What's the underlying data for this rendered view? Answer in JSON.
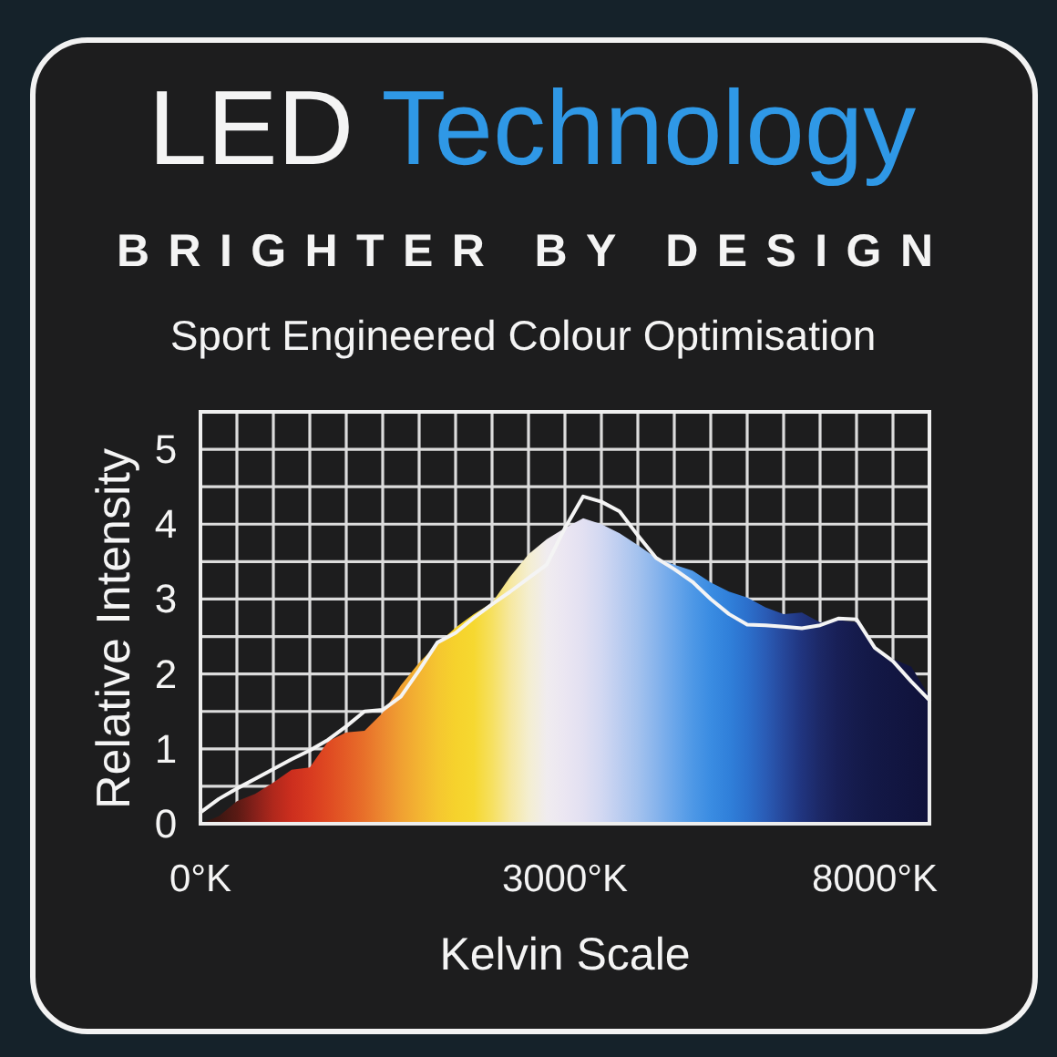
{
  "chart_data": {
    "type": "area",
    "title": "LED Technology",
    "subtitle": "BRIGHTER BY DESIGN",
    "annotations": [
      "Sport Engineered Colour Optimisation"
    ],
    "xlabel": "Kelvin Scale",
    "ylabel": "Relative Intensity",
    "categories": [
      "0°K",
      null,
      null,
      null,
      null,
      null,
      null,
      null,
      null,
      null,
      null,
      null,
      null,
      null,
      null,
      null,
      null,
      null,
      null,
      null,
      "3000°K",
      null,
      null,
      null,
      null,
      null,
      null,
      null,
      null,
      null,
      null,
      null,
      null,
      null,
      null,
      null,
      null,
      "8000°K",
      null,
      null,
      null
    ],
    "ylim": [
      0,
      5.5
    ],
    "yticks": [
      0,
      {
        "value": 0.5,
        "label": null
      },
      1,
      {
        "value": 1.5,
        "label": null
      },
      2,
      {
        "value": 2.5,
        "label": null
      },
      3,
      {
        "value": 3.5,
        "label": null
      },
      4,
      {
        "value": 4.5,
        "label": null
      },
      5,
      {
        "value": 5.5,
        "label": null
      }
    ],
    "grid": true,
    "series": [
      {
        "colors": [
          "#2b1512",
          "#3d1712",
          "#5a1a14",
          "#86201a",
          "#b0281c",
          "#cc2e1e",
          "#d83a20",
          "#df4a22",
          "#e45c26",
          "#e8702a",
          "#ec8830",
          "#f0a032",
          "#f3b432",
          "#f5c630",
          "#f6d22c",
          "#f6d830",
          "#f6e060",
          "#f6e8a0",
          "#f4eed0",
          "#f0ecef",
          "#ebe6f2",
          "#e2e0f2",
          "#d2d8f2",
          "#bccdf0",
          "#a4c2ee",
          "#88b4ec",
          "#6aa6ea",
          "#4e98e6",
          "#3a8ce2",
          "#3080da",
          "#2c70cc",
          "#2a5cb6",
          "#26479a",
          "#20347e",
          "#1c2866",
          "#181f56",
          "#151b4c",
          "#131846",
          "#121642",
          "#11143e",
          "#10123a"
        ],
        "values": [
          0,
          0.1,
          0.3,
          0.4,
          0.55,
          0.72,
          0.75,
          1.1,
          1.22,
          1.24,
          1.48,
          1.85,
          2.15,
          2.4,
          2.62,
          2.8,
          2.95,
          3.3,
          3.6,
          3.8,
          3.95,
          4.08,
          4.0,
          3.88,
          3.72,
          3.55,
          3.46,
          3.38,
          3.22,
          3.1,
          3.02,
          2.89,
          2.8,
          2.82,
          2.69,
          2.72,
          2.69,
          2.33,
          2.2,
          2.1,
          1.7
        ]
      },
      {
        "type": "line",
        "color": "#f4f4f4",
        "values": [
          0.15,
          0.33,
          0.47,
          0.6,
          0.73,
          0.86,
          0.98,
          1.12,
          1.3,
          1.5,
          1.52,
          1.7,
          2.05,
          2.42,
          2.55,
          2.75,
          2.93,
          3.1,
          3.28,
          3.46,
          3.95,
          4.37,
          4.3,
          4.17,
          3.85,
          3.55,
          3.4,
          3.23,
          3.0,
          2.8,
          2.66,
          2.65,
          2.63,
          2.61,
          2.65,
          2.74,
          2.73,
          2.35,
          2.17,
          1.9,
          1.65
        ]
      }
    ]
  }
}
